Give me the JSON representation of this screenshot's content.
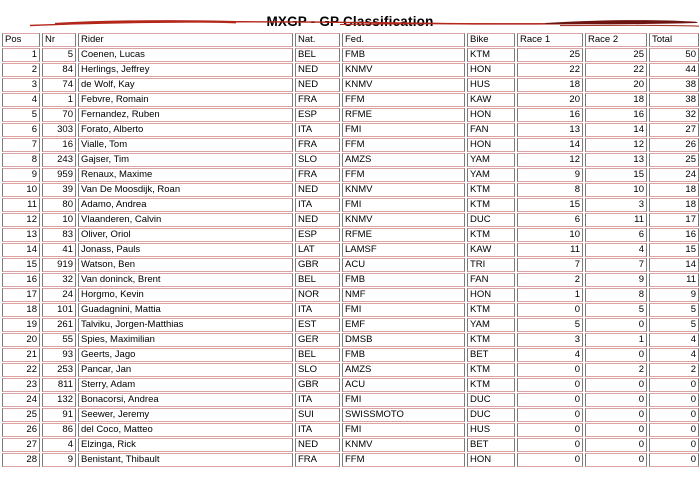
{
  "title": "MXGP - GP Classification",
  "decoration": {
    "top_stroke": "red-brush-line"
  },
  "colors": {
    "row_border": "#dca3a3",
    "column_border": "#7b7b7b",
    "stroke_red": "#b3261a",
    "stroke_dark": "#6e1410",
    "text": "#000000"
  },
  "table": {
    "columns": [
      "Pos",
      "Nr",
      "Rider",
      "Nat.",
      "Fed.",
      "Bike",
      "Race 1",
      "Race 2",
      "Total"
    ],
    "column_keys": [
      "pos",
      "nr",
      "rider",
      "nat",
      "fed",
      "bike",
      "race1",
      "race2",
      "total"
    ],
    "rows": [
      [
        "1",
        "5",
        "Coenen, Lucas",
        "BEL",
        "FMB",
        "KTM",
        "25",
        "25",
        "50"
      ],
      [
        "2",
        "84",
        "Herlings, Jeffrey",
        "NED",
        "KNMV",
        "HON",
        "22",
        "22",
        "44"
      ],
      [
        "3",
        "74",
        "de Wolf, Kay",
        "NED",
        "KNMV",
        "HUS",
        "18",
        "20",
        "38"
      ],
      [
        "4",
        "1",
        "Febvre, Romain",
        "FRA",
        "FFM",
        "KAW",
        "20",
        "18",
        "38"
      ],
      [
        "5",
        "70",
        "Fernandez, Ruben",
        "ESP",
        "RFME",
        "HON",
        "16",
        "16",
        "32"
      ],
      [
        "6",
        "303",
        "Forato, Alberto",
        "ITA",
        "FMI",
        "FAN",
        "13",
        "14",
        "27"
      ],
      [
        "7",
        "16",
        "Vialle, Tom",
        "FRA",
        "FFM",
        "HON",
        "14",
        "12",
        "26"
      ],
      [
        "8",
        "243",
        "Gajser, Tim",
        "SLO",
        "AMZS",
        "YAM",
        "12",
        "13",
        "25"
      ],
      [
        "9",
        "959",
        "Renaux, Maxime",
        "FRA",
        "FFM",
        "YAM",
        "9",
        "15",
        "24"
      ],
      [
        "10",
        "39",
        "Van De Moosdijk, Roan",
        "NED",
        "KNMV",
        "KTM",
        "8",
        "10",
        "18"
      ],
      [
        "11",
        "80",
        "Adamo, Andrea",
        "ITA",
        "FMI",
        "KTM",
        "15",
        "3",
        "18"
      ],
      [
        "12",
        "10",
        "Vlaanderen, Calvin",
        "NED",
        "KNMV",
        "DUC",
        "6",
        "11",
        "17"
      ],
      [
        "13",
        "83",
        "Oliver, Oriol",
        "ESP",
        "RFME",
        "KTM",
        "10",
        "6",
        "16"
      ],
      [
        "14",
        "41",
        "Jonass, Pauls",
        "LAT",
        "LAMSF",
        "KAW",
        "11",
        "4",
        "15"
      ],
      [
        "15",
        "919",
        "Watson, Ben",
        "GBR",
        "ACU",
        "TRI",
        "7",
        "7",
        "14"
      ],
      [
        "16",
        "32",
        "Van doninck, Brent",
        "BEL",
        "FMB",
        "FAN",
        "2",
        "9",
        "11"
      ],
      [
        "17",
        "24",
        "Horgmo, Kevin",
        "NOR",
        "NMF",
        "HON",
        "1",
        "8",
        "9"
      ],
      [
        "18",
        "101",
        "Guadagnini, Mattia",
        "ITA",
        "FMI",
        "KTM",
        "0",
        "5",
        "5"
      ],
      [
        "19",
        "261",
        "Talviku, Jorgen-Matthias",
        "EST",
        "EMF",
        "YAM",
        "5",
        "0",
        "5"
      ],
      [
        "20",
        "55",
        "Spies, Maximilian",
        "GER",
        "DMSB",
        "KTM",
        "3",
        "1",
        "4"
      ],
      [
        "21",
        "93",
        "Geerts, Jago",
        "BEL",
        "FMB",
        "BET",
        "4",
        "0",
        "4"
      ],
      [
        "22",
        "253",
        "Pancar, Jan",
        "SLO",
        "AMZS",
        "KTM",
        "0",
        "2",
        "2"
      ],
      [
        "23",
        "811",
        "Sterry, Adam",
        "GBR",
        "ACU",
        "KTM",
        "0",
        "0",
        "0"
      ],
      [
        "24",
        "132",
        "Bonacorsi, Andrea",
        "ITA",
        "FMI",
        "DUC",
        "0",
        "0",
        "0"
      ],
      [
        "25",
        "91",
        "Seewer, Jeremy",
        "SUI",
        "SWISSMOTO",
        "DUC",
        "0",
        "0",
        "0"
      ],
      [
        "26",
        "86",
        "del Coco, Matteo",
        "ITA",
        "FMI",
        "HUS",
        "0",
        "0",
        "0"
      ],
      [
        "27",
        "4",
        "Elzinga, Rick",
        "NED",
        "KNMV",
        "BET",
        "0",
        "0",
        "0"
      ],
      [
        "28",
        "9",
        "Benistant, Thibault",
        "FRA",
        "FFM",
        "HON",
        "0",
        "0",
        "0"
      ]
    ]
  }
}
